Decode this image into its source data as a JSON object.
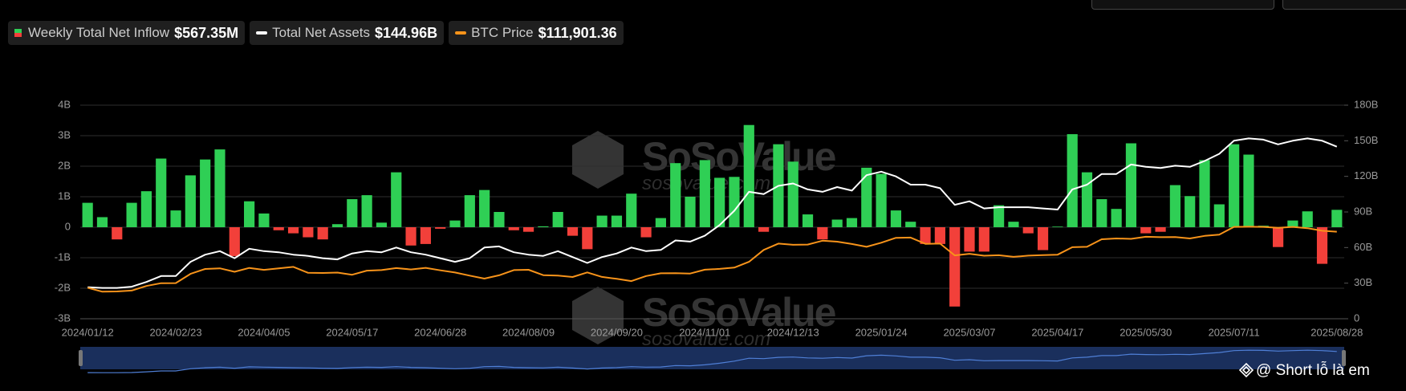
{
  "chart_data": {
    "type": "bar",
    "categories": [
      "2024/01/12",
      null,
      null,
      null,
      null,
      null,
      "2024/02/23",
      null,
      null,
      null,
      null,
      null,
      "2024/04/05",
      null,
      null,
      null,
      null,
      null,
      "2024/05/17",
      null,
      null,
      null,
      null,
      null,
      "2024/06/28",
      null,
      null,
      null,
      null,
      null,
      "2024/08/09",
      null,
      null,
      null,
      null,
      null,
      "2024/09/20",
      null,
      null,
      null,
      null,
      null,
      "2024/11/01",
      null,
      null,
      null,
      null,
      null,
      "2024/12/13",
      null,
      null,
      null,
      null,
      null,
      "2025/01/24",
      null,
      null,
      null,
      null,
      null,
      "2025/03/07",
      null,
      null,
      null,
      null,
      null,
      "2025/04/17",
      null,
      null,
      null,
      null,
      null,
      "2025/05/30",
      null,
      null,
      null,
      null,
      null,
      "2025/07/11",
      null,
      null,
      null,
      null,
      null,
      null,
      "2025/08/28"
    ],
    "series": [
      {
        "name": "Weekly Total Net Inflow",
        "current": "$567.35M",
        "type": "bar",
        "axis": "y",
        "positive_color": "#2fcf55",
        "negative_color": "#f2403a",
        "values": [
          0.8,
          0.33,
          -0.4,
          0.8,
          1.18,
          2.25,
          0.55,
          1.7,
          2.22,
          2.55,
          -0.95,
          0.85,
          0.45,
          -0.1,
          -0.2,
          -0.33,
          -0.4,
          0.1,
          0.92,
          1.05,
          0.15,
          1.8,
          -0.6,
          -0.55,
          -0.05,
          0.22,
          1.05,
          1.22,
          0.5,
          -0.1,
          -0.15,
          0.03,
          0.5,
          -0.28,
          -0.72,
          0.38,
          0.38,
          1.1,
          -0.33,
          0.3,
          2.1,
          1.0,
          2.2,
          1.62,
          1.65,
          3.35,
          -0.15,
          2.72,
          2.15,
          0.42,
          -0.4,
          0.25,
          0.3,
          1.95,
          1.75,
          0.55,
          0.18,
          -0.55,
          -0.55,
          -2.6,
          -0.8,
          -0.8,
          0.72,
          0.18,
          -0.2,
          -0.75,
          0.02,
          3.05,
          1.8,
          0.92,
          0.6,
          2.75,
          -0.2,
          -0.15,
          1.38,
          1.02,
          2.2,
          0.75,
          2.72,
          2.38,
          0.05,
          -0.65,
          0.22,
          0.52,
          -1.2,
          0.57
        ]
      },
      {
        "name": "Total Net Assets",
        "current": "$144.96B",
        "type": "line",
        "axis": "y2",
        "color": "#ffffff",
        "values": [
          26.5,
          26,
          26,
          27,
          31,
          36,
          36,
          48,
          54,
          57,
          51,
          59,
          57,
          56,
          54,
          53,
          51,
          50,
          55,
          57,
          56,
          60,
          56,
          54,
          51,
          48,
          51,
          60,
          61,
          56,
          54,
          53,
          57,
          52,
          47,
          52,
          55,
          60,
          57,
          58,
          66,
          65,
          70,
          79,
          91,
          107,
          105,
          112,
          114,
          109,
          107,
          111,
          108,
          121,
          124,
          120,
          113,
          113,
          110,
          96,
          99,
          93,
          94,
          94,
          94,
          93,
          92,
          109,
          113,
          122,
          122,
          130,
          128,
          127,
          129,
          128,
          133,
          139,
          150,
          152,
          151,
          147,
          150,
          152,
          150,
          145
        ]
      },
      {
        "name": "BTC Price",
        "current": "$111,901.36",
        "type": "line",
        "axis": "y3",
        "color": "#f7931a",
        "values": [
          46300,
          41700,
          42000,
          43000,
          48300,
          51600,
          51700,
          62500,
          68300,
          69000,
          65000,
          69500,
          67200,
          68900,
          70700,
          63800,
          63600,
          64000,
          61500,
          66300,
          67000,
          69300,
          67700,
          69600,
          66700,
          64100,
          60500,
          57000,
          60800,
          67000,
          67300,
          61000,
          60500,
          58900,
          64200,
          59000,
          56700,
          54100,
          60000,
          63200,
          63400,
          62900,
          67400,
          68400,
          69900,
          76600,
          90500,
          98000,
          96600,
          96800,
          101400,
          100200,
          97500,
          94200,
          99000,
          104700,
          105000,
          97700,
          98000,
          84200,
          86000,
          83800,
          84300,
          82500,
          83900,
          84500,
          85000,
          93700,
          94200,
          103000,
          104000,
          103500,
          106000,
          105500,
          105700,
          104000,
          107000,
          108500,
          117500,
          117700,
          117500,
          116500,
          117500,
          116000,
          113000,
          111901.36
        ]
      }
    ],
    "ylim": [
      -3,
      4
    ],
    "yticks": [
      {
        "value": -3,
        "label": "-3B"
      },
      {
        "value": -2,
        "label": "-2B"
      },
      {
        "value": -1,
        "label": "-1B"
      },
      0,
      {
        "value": 1,
        "label": "1B"
      },
      {
        "value": 2,
        "label": "2B"
      },
      {
        "value": 3,
        "label": "3B"
      },
      {
        "value": 4,
        "label": "4B"
      }
    ],
    "y2lim": [
      0,
      180
    ],
    "y2ticks": [
      0,
      {
        "value": 30,
        "label": "30B"
      },
      {
        "value": 60,
        "label": "60B"
      },
      {
        "value": 90,
        "label": "90B"
      },
      {
        "value": 120,
        "label": "120B"
      },
      {
        "value": 150,
        "label": "150B"
      },
      {
        "value": 180,
        "label": "180B"
      }
    ],
    "y3lim": [
      10000,
      260000
    ],
    "grid": true,
    "watermark": "SoSoValue",
    "watermark_url": "sosovalue.com",
    "credit": "@ Short lỗ là em"
  }
}
